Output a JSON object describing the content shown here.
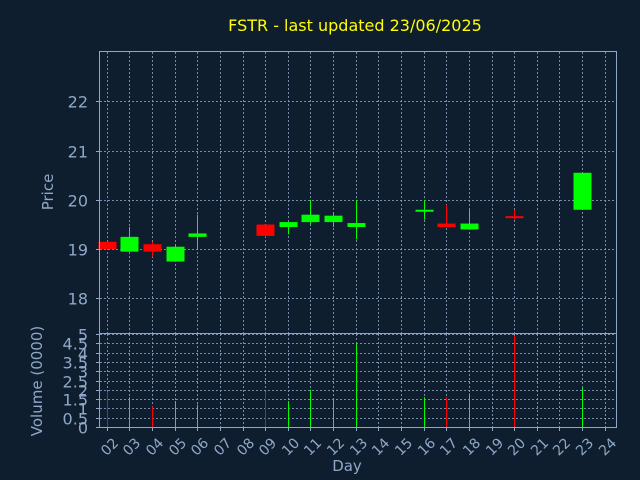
{
  "title": "FSTR - last updated 23/06/2025",
  "colors": {
    "background": "#0f1e2e",
    "title": "#ffff00",
    "axis_text": "#8fa8c8",
    "frame": "#8fa8c8",
    "grid": "#8fa8c8",
    "up": "#00ff00",
    "down": "#ff0000"
  },
  "chart_data": {
    "type": "candlestick",
    "title": "FSTR - last updated 23/06/2025",
    "xlabel": "Day",
    "ylabel": "Price",
    "volume_ylabel": "Volume (0000)",
    "x_ticks": [
      "02",
      "03",
      "04",
      "05",
      "06",
      "07",
      "08",
      "09",
      "10",
      "11",
      "12",
      "13",
      "14",
      "15",
      "16",
      "17",
      "18",
      "19",
      "20",
      "21",
      "22",
      "23",
      "24"
    ],
    "xlim": [
      -0.3,
      22.5
    ],
    "ylim": [
      17.3,
      23.0
    ],
    "y_ticks": [
      18,
      19,
      20,
      21,
      22
    ],
    "volume_ylim": [
      0,
      5
    ],
    "volume_ticks": [
      "0",
      "0.5",
      "1",
      "1.5",
      "2",
      "2.5",
      "3",
      "3.5",
      "4",
      "4.5",
      "5"
    ],
    "grid": true,
    "candles": [
      {
        "day": "02",
        "open": 19.15,
        "high": 19.15,
        "low": 19.0,
        "close": 19.0,
        "volume": 1.9
      },
      {
        "day": "03",
        "open": 18.95,
        "high": 19.45,
        "low": 18.95,
        "close": 19.25,
        "volume": 1.6
      },
      {
        "day": "04",
        "open": 19.1,
        "high": 19.15,
        "low": 18.85,
        "close": 18.95,
        "volume": 1.1
      },
      {
        "day": "05",
        "open": 18.75,
        "high": 19.1,
        "low": 18.75,
        "close": 19.05,
        "volume": 1.4
      },
      {
        "day": "06",
        "open": 19.25,
        "high": 19.7,
        "low": 19.0,
        "close": 19.32,
        "volume": 1.2
      },
      {
        "day": "09",
        "open": 19.5,
        "high": 19.5,
        "low": 19.25,
        "close": 19.27,
        "volume": 1.9
      },
      {
        "day": "10",
        "open": 19.45,
        "high": 19.55,
        "low": 19.3,
        "close": 19.55,
        "volume": 1.4
      },
      {
        "day": "11",
        "open": 19.55,
        "high": 20.0,
        "low": 19.5,
        "close": 19.7,
        "volume": 2.0
      },
      {
        "day": "12",
        "open": 19.55,
        "high": 19.75,
        "low": 19.45,
        "close": 19.68,
        "volume": 1.5
      },
      {
        "day": "13",
        "open": 19.45,
        "high": 20.0,
        "low": 19.2,
        "close": 19.53,
        "volume": 4.5
      },
      {
        "day": "16",
        "open": 19.8,
        "high": 20.0,
        "low": 19.6,
        "close": 19.8,
        "volume": 1.6
      },
      {
        "day": "17",
        "open": 19.52,
        "high": 19.9,
        "low": 19.45,
        "close": 19.45,
        "volume": 1.6
      },
      {
        "day": "18",
        "open": 19.4,
        "high": 19.8,
        "low": 19.4,
        "close": 19.52,
        "volume": 1.8
      },
      {
        "day": "20",
        "open": 19.67,
        "high": 19.8,
        "low": 19.6,
        "close": 19.63,
        "volume": 4.9
      },
      {
        "day": "23",
        "open": 19.8,
        "high": 20.55,
        "low": 19.8,
        "close": 20.55,
        "volume": 2.1
      }
    ]
  }
}
